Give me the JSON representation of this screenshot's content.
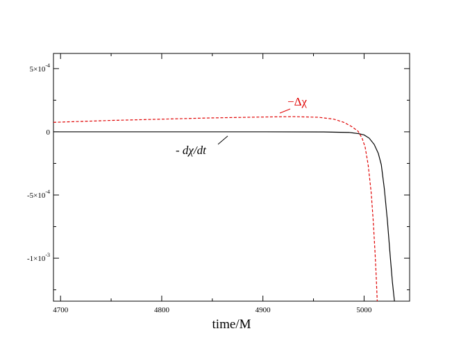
{
  "chart_data": {
    "type": "line",
    "title": "",
    "xlabel": "time/M",
    "ylabel": "",
    "xlim": [
      4693,
      5045
    ],
    "ylim": [
      -0.00134,
      0.00062
    ],
    "grid": false,
    "x_ticks": [
      {
        "value": 4700,
        "label": "4700"
      },
      {
        "value": 4800,
        "label": "4800"
      },
      {
        "value": 4900,
        "label": "4900"
      },
      {
        "value": 5000,
        "label": "5000"
      }
    ],
    "y_ticks": [
      {
        "value": 0.0005,
        "mantissa": "5×10",
        "exp": "-4"
      },
      {
        "value": 0,
        "mantissa": "0",
        "exp": ""
      },
      {
        "value": -0.0005,
        "mantissa": "-5×10",
        "exp": "-4"
      },
      {
        "value": -0.001,
        "mantissa": "-1×10",
        "exp": "-3"
      }
    ],
    "series": [
      {
        "label": "- dχ/dt",
        "color": "#000000",
        "dash": "solid",
        "x": [
          4693,
          4800,
          4900,
          4960,
          4985,
          4995,
          5000,
          5005,
          5010,
          5014,
          5017,
          5020,
          5023,
          5026,
          5028,
          5030
        ],
        "y": [
          0,
          0,
          0,
          -1e-06,
          -5e-06,
          -1.5e-05,
          -2.5e-05,
          -5e-05,
          -0.0001,
          -0.00017,
          -0.00026,
          -0.00045,
          -0.0007,
          -0.001,
          -0.00119,
          -0.00134
        ]
      },
      {
        "label": "−Δχ",
        "color": "#e00000",
        "dash": "dashed",
        "x": [
          4693,
          4750,
          4800,
          4850,
          4900,
          4930,
          4955,
          4970,
          4980,
          4988,
          4994,
          4998,
          5001,
          5004,
          5007,
          5009,
          5011,
          5012,
          5013
        ],
        "y": [
          7.5e-05,
          9e-05,
          0.0001,
          0.00011,
          0.000117,
          0.00012,
          0.000115,
          0.0001,
          7.5e-05,
          4e-05,
          5e-06,
          -5e-05,
          -0.00012,
          -0.00026,
          -0.00048,
          -0.0007,
          -0.00098,
          -0.00115,
          -0.00134
        ]
      }
    ],
    "annotations": [
      {
        "series": 0,
        "text": "- dχ/dt"
      },
      {
        "series": 1,
        "text": "−Δχ"
      }
    ]
  }
}
